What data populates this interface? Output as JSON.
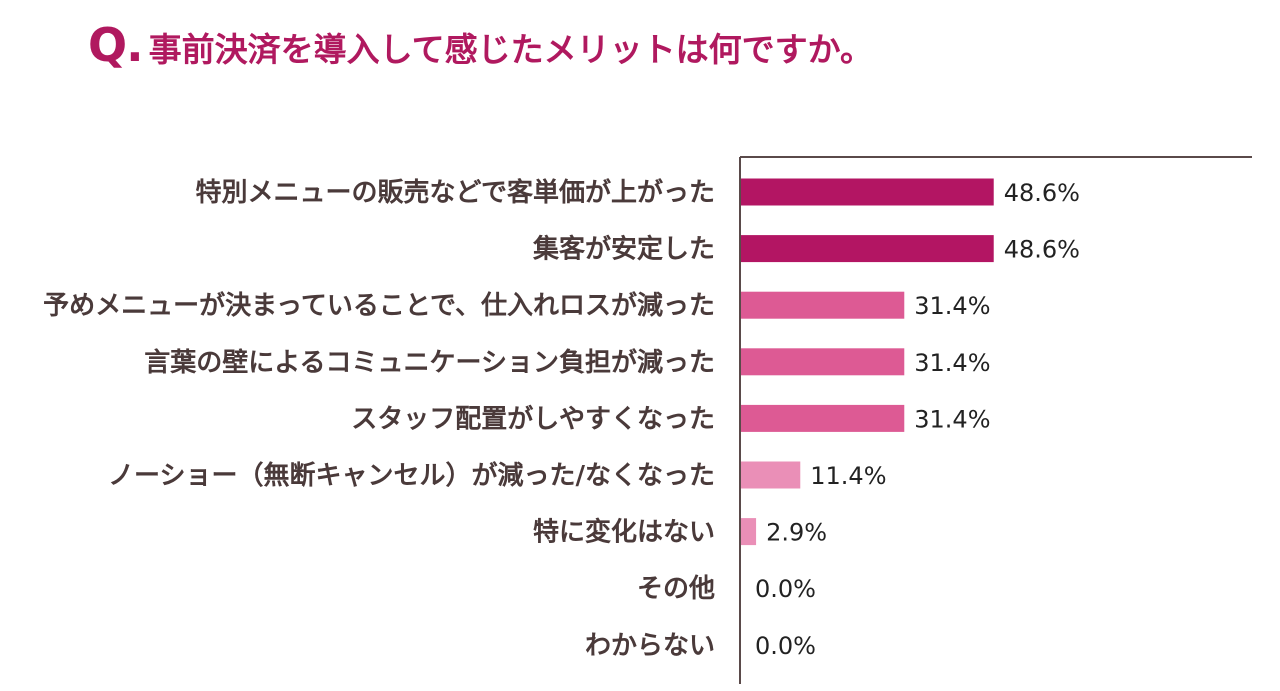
{
  "title": {
    "prefix": "Q.",
    "text": "事前決済を導入して感じたメリットは何ですか。"
  },
  "colors": {
    "title": "#b0195f",
    "axis": "#5a4a4a",
    "bar_dark": "#b31563",
    "bar_mid": "#dd5a94",
    "bar_light": "#ea8fb7"
  },
  "chart_data": {
    "type": "bar",
    "orientation": "horizontal",
    "categories": [
      "特別メニューの販売などで客単価が上がった",
      "集客が安定した",
      "予めメニューが決まっていることで、仕入れロスが減った",
      "言葉の壁によるコミュニケーション負担が減った",
      "スタッフ配置がしやすくなった",
      "ノーショー（無断キャンセル）が減った/なくなった",
      "特に変化はない",
      "その他",
      "わからない"
    ],
    "values": [
      48.6,
      48.6,
      31.4,
      31.4,
      31.4,
      11.4,
      2.9,
      0.0,
      0.0
    ],
    "value_labels": [
      "48.6%",
      "48.6%",
      "31.4%",
      "31.4%",
      "31.4%",
      "11.4%",
      "2.9%",
      "0.0%",
      "0.0%"
    ],
    "bar_colors": [
      "#b31563",
      "#b31563",
      "#dd5a94",
      "#dd5a94",
      "#dd5a94",
      "#ea8fb7",
      "#ea8fb7",
      "#ea8fb7",
      "#ea8fb7"
    ],
    "xlim": [
      0,
      100
    ],
    "grid": false,
    "legend": "none"
  }
}
